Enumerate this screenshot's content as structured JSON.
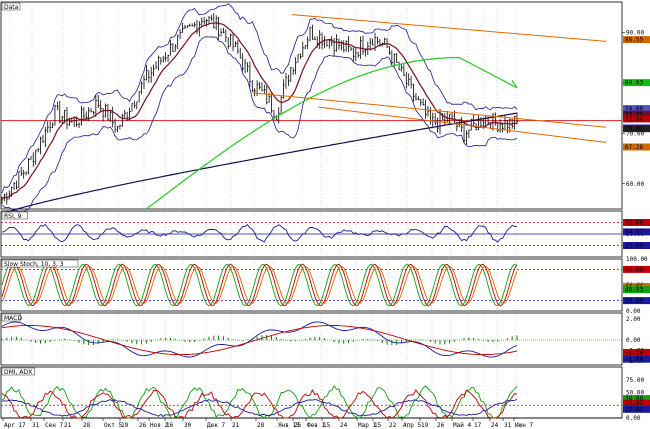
{
  "chart_data": [
    {
      "type": "line",
      "title": "Data",
      "price_labels": [
        "90.00",
        "80.00",
        "70.00",
        "60.00"
      ],
      "price_ylim": [
        55,
        96
      ],
      "right_marker_values": [
        "88.55",
        "80.03",
        "74.88",
        "73.75",
        "72.84",
        "71.07",
        "70.91",
        "67.28"
      ],
      "right_marker_colors": [
        "#d06a00",
        "#10c010",
        "#5050c0",
        "#6a1030",
        "#c00000",
        "#5050c0",
        "#202020",
        "#d06a00"
      ]
    },
    {
      "type": "line",
      "title": "RSI, 9",
      "levels": [
        "75.00",
        "50.00",
        "25.00"
      ],
      "markers": [
        "75.00",
        "54.57",
        "25.00"
      ],
      "marker_colors": [
        "#c00000",
        "#1a1a9a",
        "#1a1a9a"
      ]
    },
    {
      "type": "line",
      "title": "Slow Stoch, 10, 3, 3",
      "levels": [
        "100.00",
        "50.00",
        "0.00"
      ],
      "markers": [
        "80.00",
        "47.01",
        "40.93",
        "20.00"
      ],
      "marker_colors": [
        "#c00000",
        "#d06a00",
        "#10a010",
        "#1a1a9a"
      ]
    },
    {
      "type": "line",
      "title": "MACD",
      "levels": [
        "2.00",
        "0.00",
        "-1.00",
        "-2.00"
      ],
      "markers": [
        "-1.19",
        "-1.84"
      ],
      "marker_colors": [
        "#c00000",
        "#1a1a9a"
      ]
    },
    {
      "type": "line",
      "title": "DMI, ADX",
      "levels": [
        "75.00",
        "50.00",
        "25.00",
        "0.00"
      ],
      "markers": [
        "38.06",
        "29.02",
        "17.01"
      ],
      "marker_colors": [
        "#10a010",
        "#c00000",
        "#1a1a9a"
      ]
    }
  ],
  "x_labels": [
    "Apr 17",
    "31",
    "Сен 7",
    "21",
    "28",
    "Окт 5",
    "19",
    "26",
    "Ноя 2",
    "16",
    "30",
    "Дек 7",
    "21",
    "28",
    "Янв 13",
    "25",
    "Фев 1",
    "15",
    "24",
    "Мар 1",
    "15",
    "22",
    "Апр 5",
    "19",
    "26",
    "Май 4",
    "17",
    "24",
    "31",
    "Июн 7"
  ],
  "colors": {
    "background": "#ffffff",
    "bars": "#000000",
    "bollinger": "#1a1a9a",
    "ma_short": "#7a1020",
    "ma_mid": "#22cc22",
    "ma_long": "#101050",
    "channel": "#e06a00",
    "hline": "#cc0000",
    "grid": "#b0b0b0"
  }
}
